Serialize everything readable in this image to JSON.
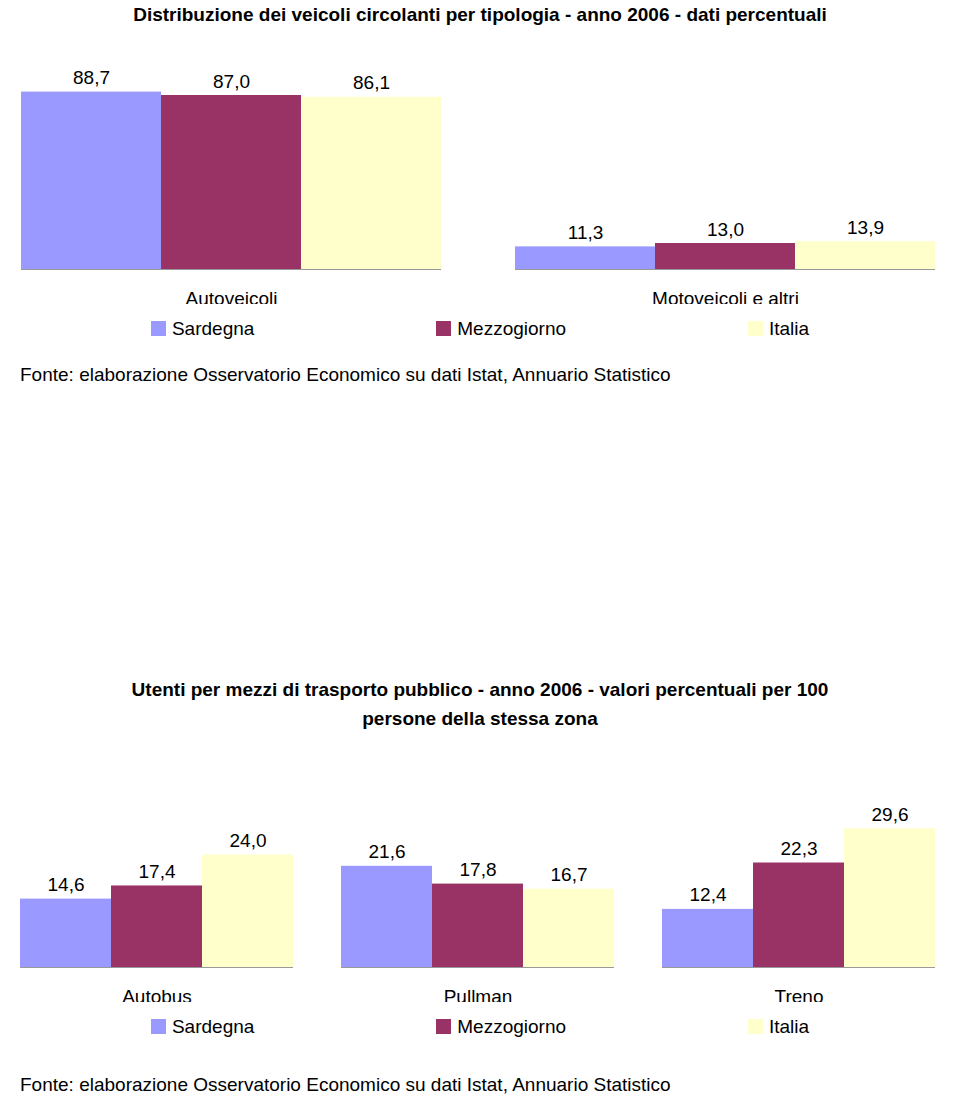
{
  "chart_data": [
    {
      "type": "bar",
      "title": "Distribuzione dei veicoli circolanti per tipologia - anno 2006 - dati percentuali",
      "categories": [
        "Autoveicoli",
        "Motoveicoli e altri"
      ],
      "series": [
        {
          "name": "Sardegna",
          "color": "#9999ff",
          "values": [
            88.7,
            11.3
          ],
          "value_labels": [
            "88,7",
            "11,3"
          ]
        },
        {
          "name": "Mezzogiorno",
          "color": "#993366",
          "values": [
            87.0,
            13.0
          ],
          "value_labels": [
            "87,0",
            "13,0"
          ]
        },
        {
          "name": "Italia",
          "color": "#ffffcc",
          "values": [
            86.1,
            13.9
          ],
          "value_labels": [
            "86,1",
            "13,9"
          ]
        }
      ],
      "ylim": [
        0,
        100
      ],
      "data_labels": true,
      "tick_labels": "x",
      "legend": "bottom",
      "note": "Fonte: elaborazione Osservatorio Economico su dati Istat, Annuario Statistico"
    },
    {
      "type": "bar",
      "title": "Utenti per mezzi di trasporto pubblico - anno 2006 - valori percentuali per 100 persone della stessa zona",
      "categories": [
        "Autobus",
        "Pullman",
        "Treno"
      ],
      "series": [
        {
          "name": "Sardegna",
          "color": "#9999ff",
          "values": [
            14.6,
            21.6,
            12.4
          ],
          "value_labels": [
            "14,6",
            "21,6",
            "12,4"
          ]
        },
        {
          "name": "Mezzogiorno",
          "color": "#993366",
          "values": [
            17.4,
            17.8,
            22.3
          ],
          "value_labels": [
            "17,4",
            "17,8",
            "22,3"
          ]
        },
        {
          "name": "Italia",
          "color": "#ffffcc",
          "values": [
            24.0,
            16.7,
            29.6
          ],
          "value_labels": [
            "24,0",
            "16,7",
            "29,6"
          ]
        }
      ],
      "ylim": [
        0,
        35
      ],
      "data_labels": true,
      "tick_labels": "x",
      "legend": "bottom",
      "note": "Fonte: elaborazione Osservatorio Economico su dati Istat, Annuario Statistico"
    }
  ]
}
